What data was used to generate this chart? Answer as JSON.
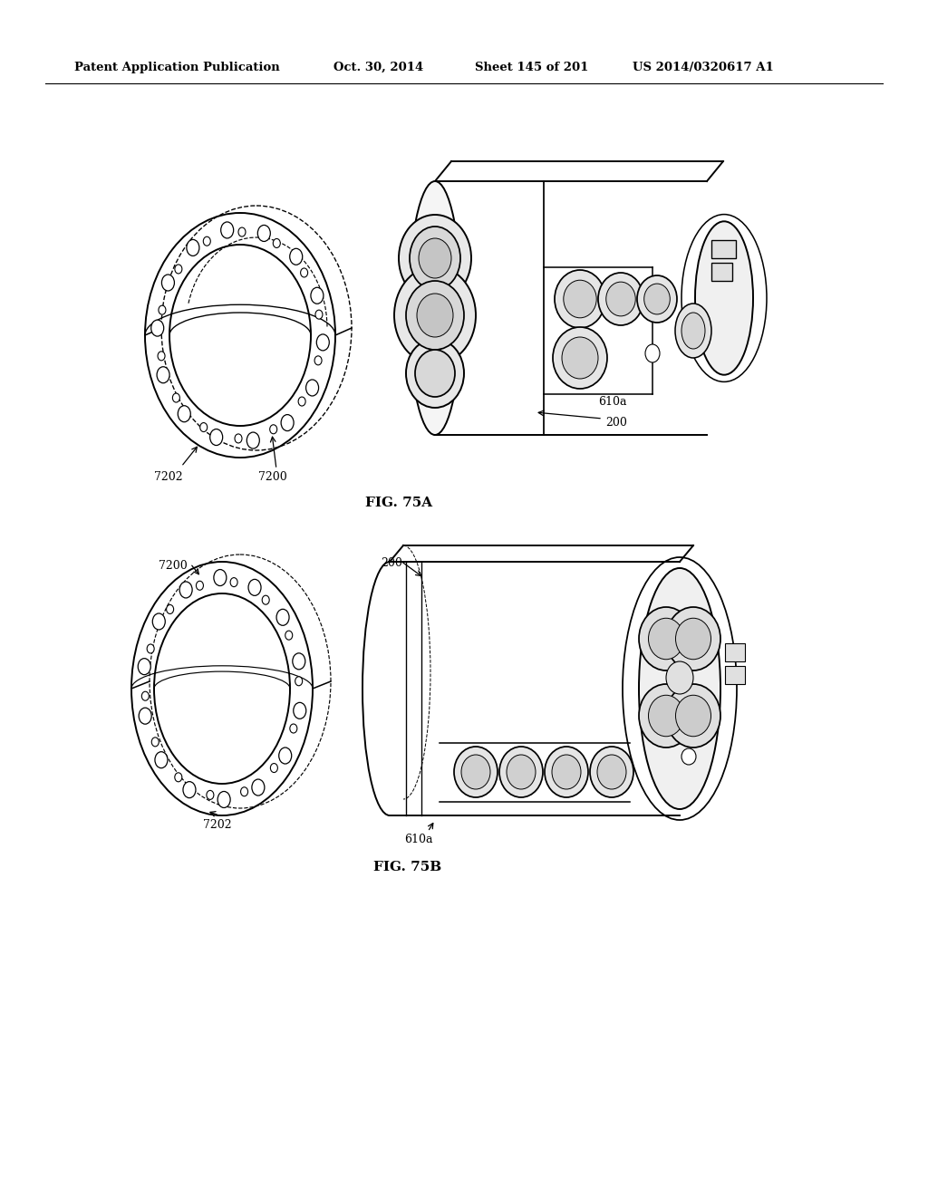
{
  "bg_color": "#ffffff",
  "line_color": "#000000",
  "header_text": "Patent Application Publication",
  "header_date": "Oct. 30, 2014",
  "header_sheet": "Sheet 145 of 201",
  "header_patent": "US 2014/0320617 A1",
  "fig_a_label": "FIG. 75A",
  "fig_b_label": "FIG. 75B"
}
